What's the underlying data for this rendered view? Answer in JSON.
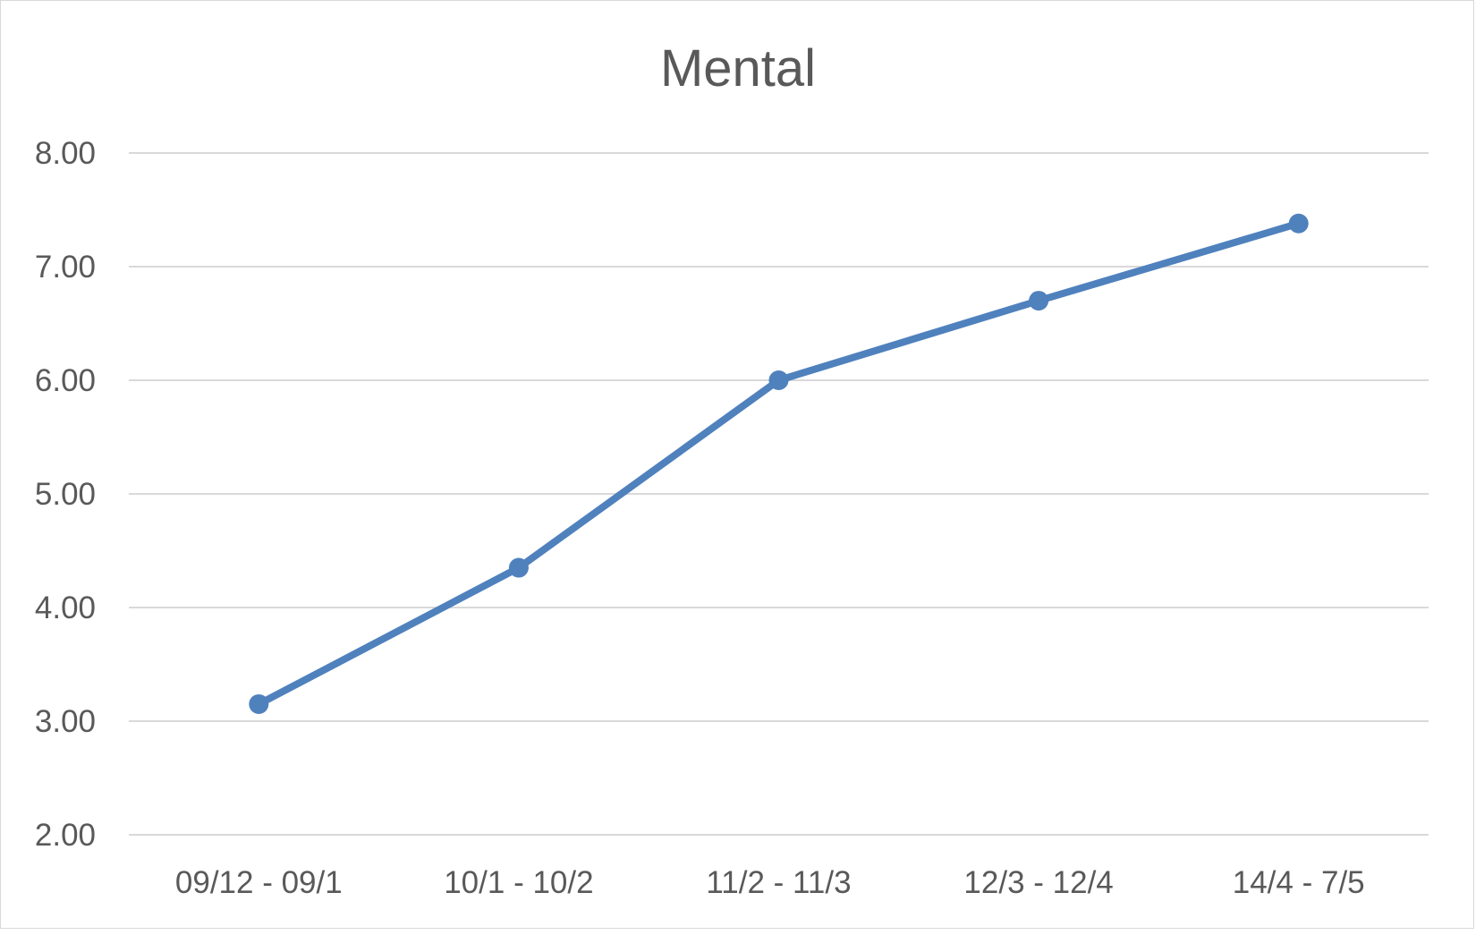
{
  "chart_data": {
    "type": "line",
    "title": "Mental",
    "xlabel": "",
    "ylabel": "",
    "categories": [
      "09/12 - 09/1",
      "10/1 - 10/2",
      "11/2 - 11/3",
      "12/3 - 12/4",
      "14/4 - 7/5"
    ],
    "series": [
      {
        "values": [
          3.15,
          4.35,
          6.0,
          6.7,
          7.38
        ],
        "color": "#4f81bd",
        "markers": true
      }
    ],
    "ylim": [
      2,
      8
    ],
    "yticks": [
      "2.00",
      "3.00",
      "4.00",
      "5.00",
      "6.00",
      "7.00",
      "8.00"
    ],
    "grid": true,
    "legend": "none"
  }
}
